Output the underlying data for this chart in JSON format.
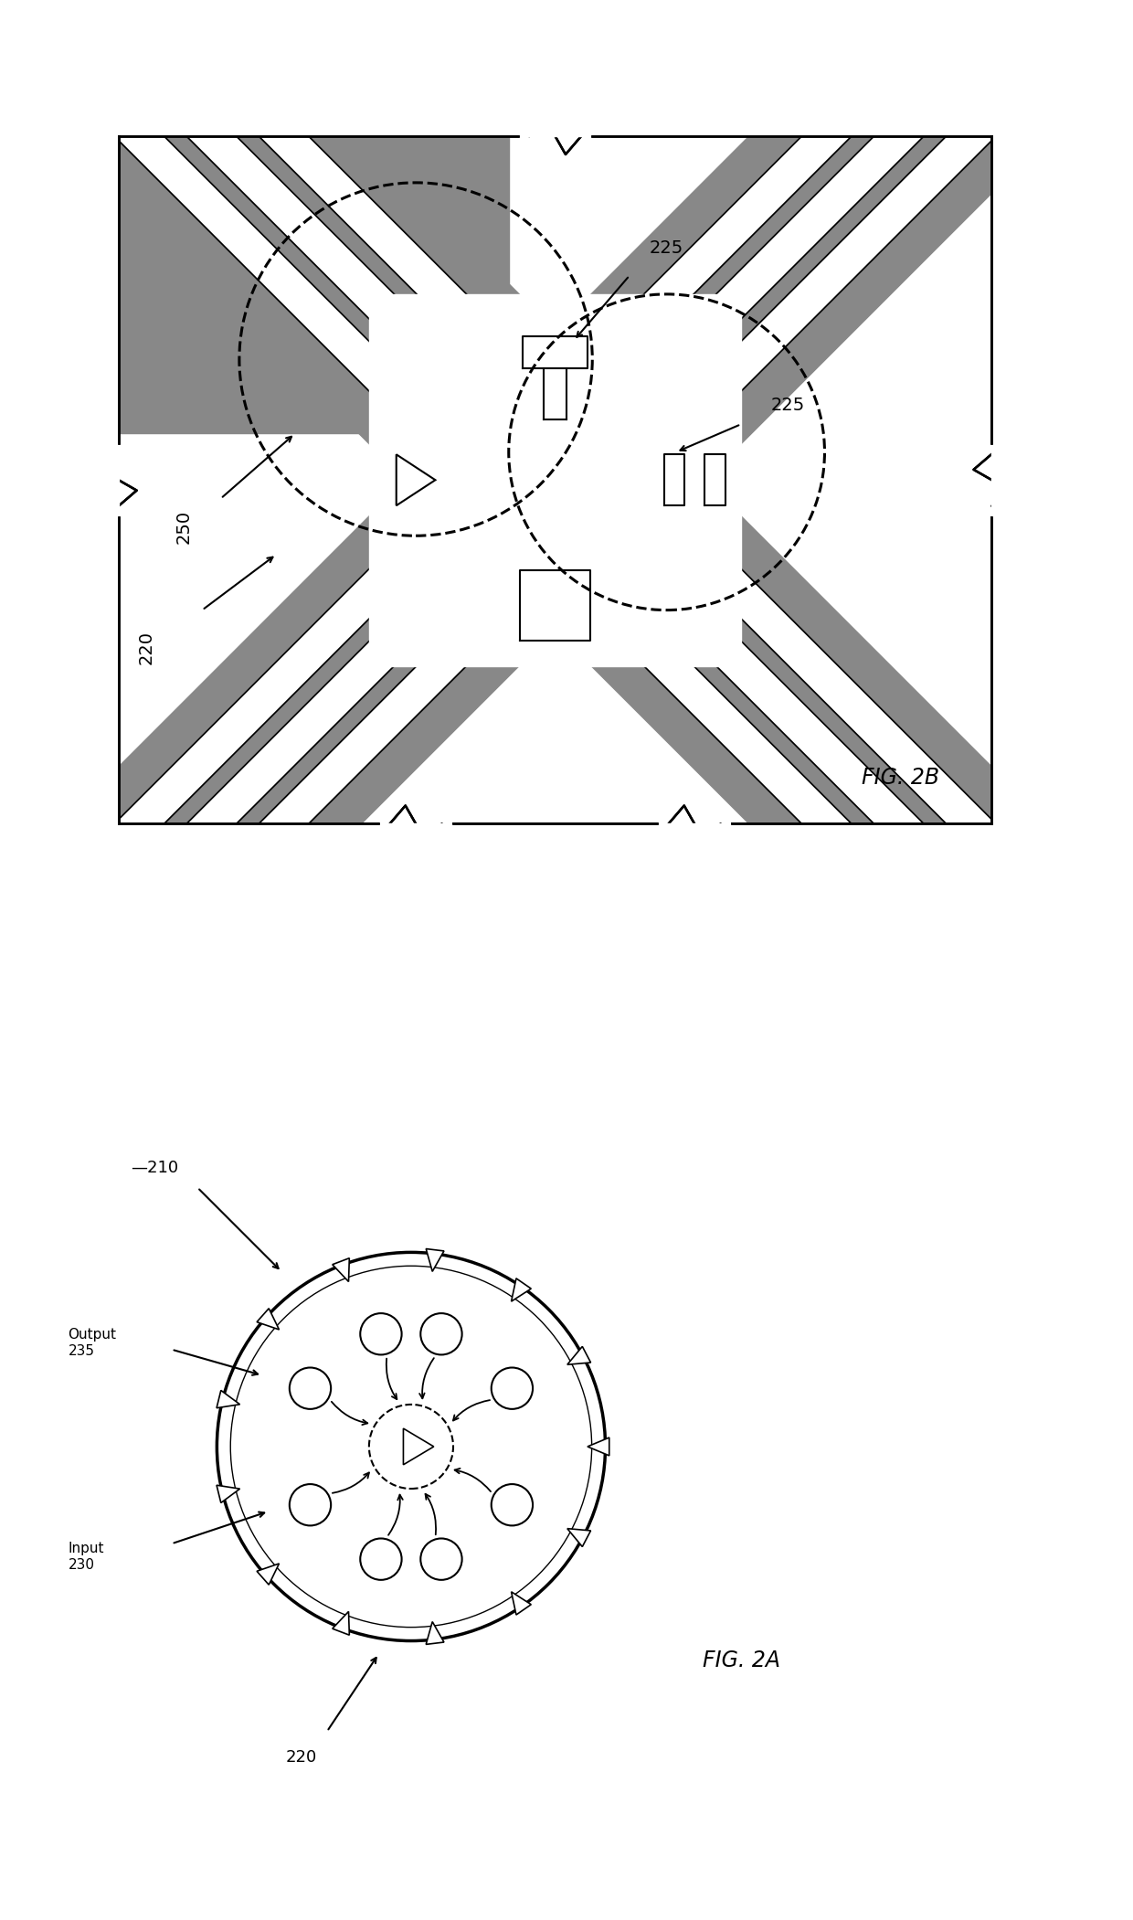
{
  "bg_color": "#ffffff",
  "line_color": "#000000",
  "dark_color": "#c8c8c8",
  "fig_label_2A": "FIG. 2A",
  "fig_label_2B": "FIG. 2B",
  "label_210": "—210",
  "label_220_A": "220",
  "label_230": "Input\n230",
  "label_235": "Output\n235",
  "label_220_B": "220",
  "label_225_B1": "225",
  "label_225_B2": "225",
  "label_250": "250",
  "frame_2b": [
    0.08,
    0.52,
    0.82,
    0.46
  ],
  "frame_2a": [
    0.02,
    0.02,
    0.6,
    0.47
  ]
}
